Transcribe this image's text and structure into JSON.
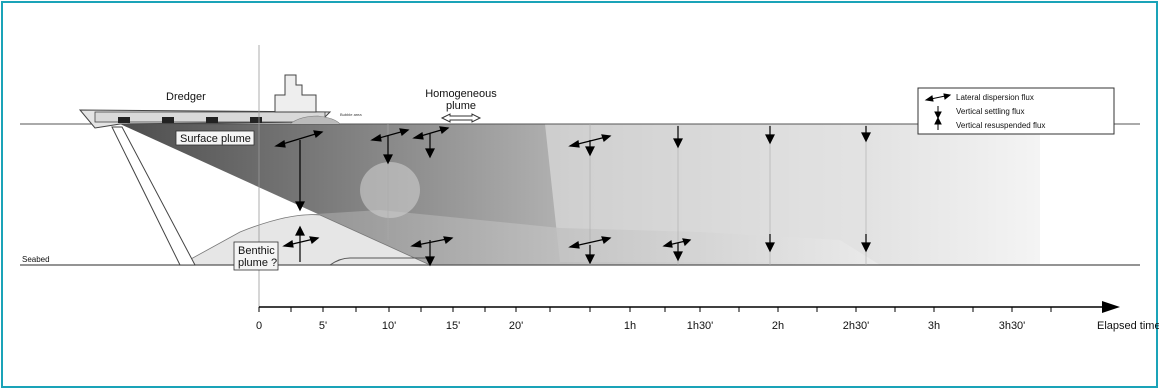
{
  "labels": {
    "dredger": "Dredger",
    "homogeneous_plume_line1": "Homogeneous",
    "homogeneous_plume_line2": "plume",
    "bubble_area": "Bubble area",
    "surface_plume": "Surface plume",
    "benthic_plume_line1": "Benthic",
    "benthic_plume_line2": "plume ?",
    "seabed": "Seabed",
    "axis_title": "Elapsed time"
  },
  "legend": {
    "items": [
      {
        "icon": "lateral-dispersion-arrow-icon",
        "label": "Lateral dispersion flux"
      },
      {
        "icon": "vertical-settling-arrow-icon",
        "label": "Vertical settling flux"
      },
      {
        "icon": "vertical-resuspended-arrow-icon",
        "label": "Vertical resuspended flux"
      }
    ]
  },
  "time_axis": {
    "ticks": [
      "0",
      "5'",
      "10'",
      "15'",
      "20'",
      "1h",
      "1h30'",
      "2h",
      "2h30'",
      "3h",
      "3h30'"
    ]
  },
  "colors": {
    "frame": "#1aa3b8",
    "plume_dark": "#3a3a3a",
    "plume_light": "#eeeeee"
  }
}
